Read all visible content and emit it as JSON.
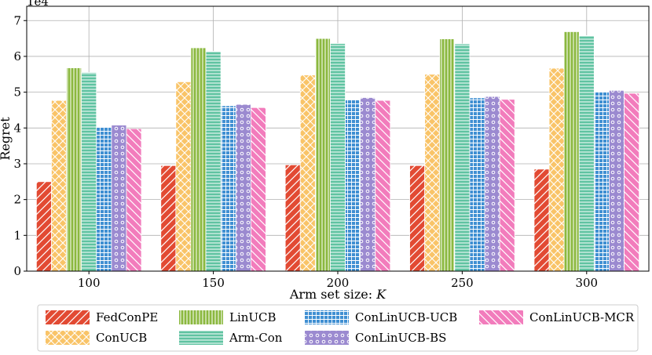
{
  "chart_data": {
    "type": "bar",
    "title": "",
    "xlabel": "Arm set size: K",
    "xlabel_prefix": "Arm set size: ",
    "xlabel_var": "K",
    "ylabel": "Regret",
    "y_multiplier": "1e4",
    "ylim": [
      0,
      7.4
    ],
    "yticks": [
      "0",
      "1",
      "2",
      "3",
      "4",
      "5",
      "6",
      "7"
    ],
    "grid": true,
    "legend_position": "bottom",
    "categories": [
      "100",
      "150",
      "200",
      "250",
      "300"
    ],
    "series": [
      {
        "name": "FedConPE",
        "color": "#e24a33",
        "hatch": "diag-right",
        "values": [
          2.5,
          2.95,
          2.97,
          2.95,
          2.85
        ]
      },
      {
        "name": "ConUCB",
        "color": "#f9c468",
        "hatch": "cross",
        "values": [
          4.77,
          5.29,
          5.48,
          5.5,
          5.67
        ]
      },
      {
        "name": "LinUCB",
        "color": "#8bb83f",
        "hatch": "vertical",
        "values": [
          5.68,
          6.24,
          6.5,
          6.49,
          6.69
        ]
      },
      {
        "name": "Arm-Con",
        "color": "#5fc3a1",
        "hatch": "horizontal",
        "values": [
          5.55,
          6.14,
          6.36,
          6.35,
          6.58
        ]
      },
      {
        "name": "ConLinUCB-UCB",
        "color": "#3f8fd2",
        "hatch": "grid",
        "values": [
          4.03,
          4.62,
          4.8,
          4.84,
          5.01
        ]
      },
      {
        "name": "ConLinUCB-BS",
        "color": "#9b8ad0",
        "hatch": "circles",
        "values": [
          4.08,
          4.66,
          4.85,
          4.88,
          5.05
        ]
      },
      {
        "name": "ConLinUCB-MCR",
        "color": "#f27cbc",
        "hatch": "diag-left",
        "values": [
          3.98,
          4.57,
          4.77,
          4.8,
          4.97
        ]
      }
    ]
  }
}
